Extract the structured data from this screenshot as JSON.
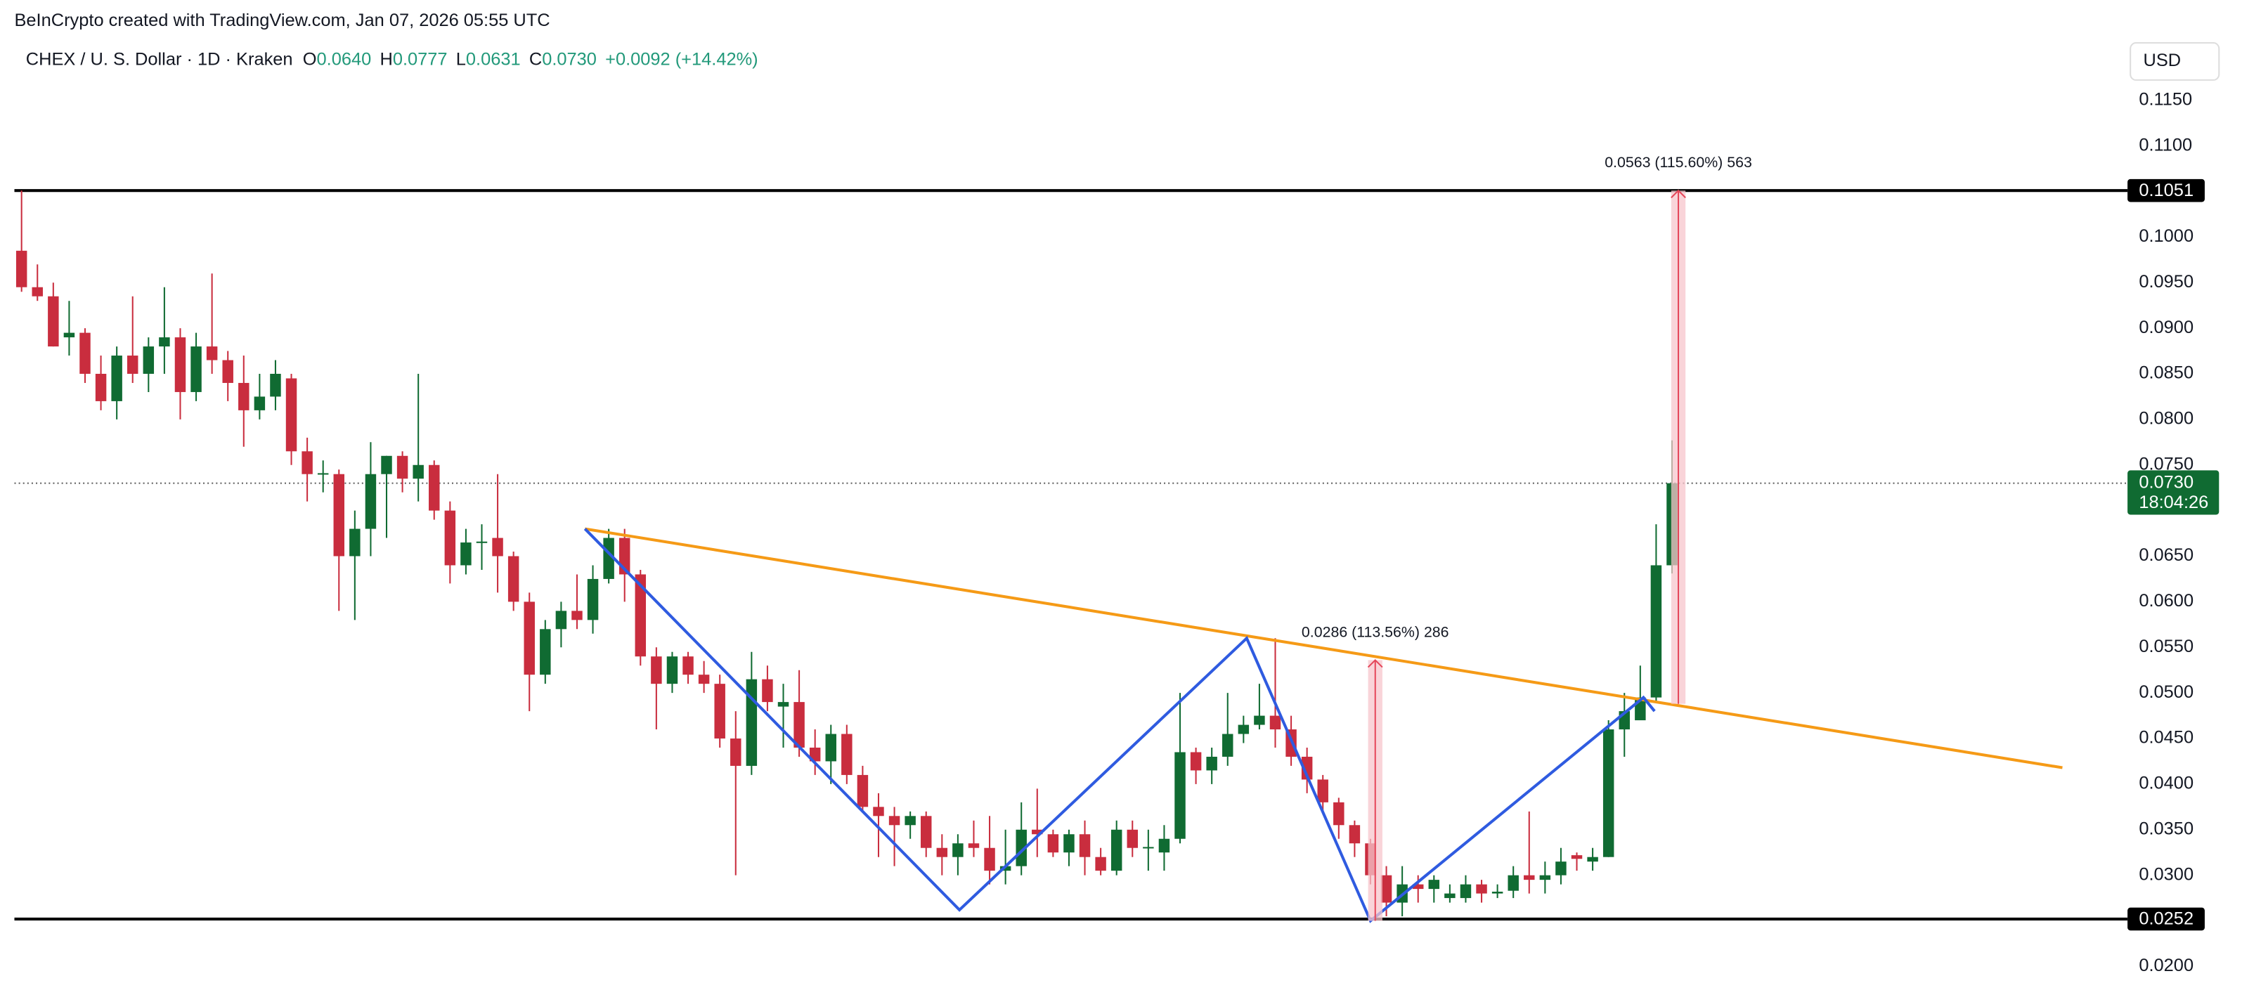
{
  "chart_data": {
    "type": "candlestick",
    "header": "BeInCrypto created with TradingView.com, Jan 07, 2026 05:55 UTC",
    "symbol": "CHEX / U. S. Dollar · 1D · Kraken",
    "ohlc_legend": [
      {
        "key": "O",
        "value": "0.0640"
      },
      {
        "key": "H",
        "value": "0.0777"
      },
      {
        "key": "L",
        "value": "0.0631"
      },
      {
        "key": "C",
        "value": "0.0730"
      }
    ],
    "change": "+0.0092 (+14.42%)",
    "currency": "USD",
    "up_color": "#106b32",
    "down_color": "#c92d3e",
    "ylim": [
      0.0161,
      0.126
    ],
    "yticks": [
      {
        "value": 0.115,
        "label": "0.1150"
      },
      {
        "value": 0.11,
        "label": "0.1100"
      },
      {
        "value": 0.1,
        "label": "0.1000"
      },
      {
        "value": 0.095,
        "label": "0.0950"
      },
      {
        "value": 0.09,
        "label": "0.0900"
      },
      {
        "value": 0.085,
        "label": "0.0850"
      },
      {
        "value": 0.08,
        "label": "0.0800"
      },
      {
        "value": 0.075,
        "label": "0.0750"
      },
      {
        "value": 0.065,
        "label": "0.0650"
      },
      {
        "value": 0.06,
        "label": "0.0600"
      },
      {
        "value": 0.055,
        "label": "0.0550"
      },
      {
        "value": 0.05,
        "label": "0.0500"
      },
      {
        "value": 0.045,
        "label": "0.0450"
      },
      {
        "value": 0.04,
        "label": "0.0400"
      },
      {
        "value": 0.035,
        "label": "0.0350"
      },
      {
        "value": 0.03,
        "label": "0.0300"
      },
      {
        "value": 0.02,
        "label": "0.0200"
      }
    ],
    "candles": [
      [
        0.0985,
        0.1051,
        0.094,
        0.0945
      ],
      [
        0.0945,
        0.097,
        0.093,
        0.0935
      ],
      [
        0.0935,
        0.095,
        0.088,
        0.088
      ],
      [
        0.089,
        0.093,
        0.087,
        0.0895
      ],
      [
        0.0895,
        0.09,
        0.084,
        0.085
      ],
      [
        0.085,
        0.087,
        0.081,
        0.082
      ],
      [
        0.082,
        0.088,
        0.08,
        0.087
      ],
      [
        0.087,
        0.0935,
        0.084,
        0.085
      ],
      [
        0.085,
        0.089,
        0.083,
        0.088
      ],
      [
        0.088,
        0.0945,
        0.085,
        0.089
      ],
      [
        0.089,
        0.09,
        0.08,
        0.083
      ],
      [
        0.083,
        0.0895,
        0.082,
        0.088
      ],
      [
        0.088,
        0.096,
        0.085,
        0.0865
      ],
      [
        0.0865,
        0.0875,
        0.082,
        0.084
      ],
      [
        0.084,
        0.087,
        0.077,
        0.081
      ],
      [
        0.081,
        0.085,
        0.08,
        0.0825
      ],
      [
        0.0825,
        0.0865,
        0.081,
        0.085
      ],
      [
        0.0845,
        0.085,
        0.075,
        0.0765
      ],
      [
        0.0765,
        0.078,
        0.071,
        0.074
      ],
      [
        0.074,
        0.0755,
        0.072,
        0.0741
      ],
      [
        0.074,
        0.0745,
        0.059,
        0.065
      ],
      [
        0.065,
        0.07,
        0.058,
        0.068
      ],
      [
        0.068,
        0.0775,
        0.065,
        0.074
      ],
      [
        0.074,
        0.076,
        0.067,
        0.076
      ],
      [
        0.076,
        0.0765,
        0.072,
        0.0735
      ],
      [
        0.0735,
        0.085,
        0.071,
        0.075
      ],
      [
        0.075,
        0.0755,
        0.069,
        0.07
      ],
      [
        0.07,
        0.071,
        0.062,
        0.064
      ],
      [
        0.064,
        0.068,
        0.063,
        0.0665
      ],
      [
        0.0665,
        0.0685,
        0.0635,
        0.0666
      ],
      [
        0.067,
        0.074,
        0.061,
        0.065
      ],
      [
        0.065,
        0.0655,
        0.059,
        0.06
      ],
      [
        0.06,
        0.061,
        0.048,
        0.052
      ],
      [
        0.052,
        0.058,
        0.051,
        0.057
      ],
      [
        0.057,
        0.06,
        0.055,
        0.059
      ],
      [
        0.059,
        0.063,
        0.057,
        0.058
      ],
      [
        0.058,
        0.064,
        0.0565,
        0.0625
      ],
      [
        0.0625,
        0.068,
        0.062,
        0.067
      ],
      [
        0.067,
        0.068,
        0.06,
        0.063
      ],
      [
        0.063,
        0.0635,
        0.053,
        0.054
      ],
      [
        0.054,
        0.055,
        0.046,
        0.051
      ],
      [
        0.051,
        0.0545,
        0.05,
        0.054
      ],
      [
        0.054,
        0.0545,
        0.051,
        0.052
      ],
      [
        0.052,
        0.0535,
        0.05,
        0.051
      ],
      [
        0.051,
        0.052,
        0.044,
        0.045
      ],
      [
        0.045,
        0.048,
        0.03,
        0.042
      ],
      [
        0.042,
        0.0545,
        0.041,
        0.0515
      ],
      [
        0.0515,
        0.053,
        0.048,
        0.049
      ],
      [
        0.0485,
        0.051,
        0.044,
        0.049
      ],
      [
        0.049,
        0.0525,
        0.043,
        0.044
      ],
      [
        0.044,
        0.046,
        0.041,
        0.0425
      ],
      [
        0.0425,
        0.0465,
        0.04,
        0.0455
      ],
      [
        0.0455,
        0.0465,
        0.04,
        0.041
      ],
      [
        0.041,
        0.042,
        0.037,
        0.0375
      ],
      [
        0.0375,
        0.039,
        0.032,
        0.0365
      ],
      [
        0.0365,
        0.0375,
        0.031,
        0.0355
      ],
      [
        0.0355,
        0.037,
        0.034,
        0.0365
      ],
      [
        0.0365,
        0.037,
        0.032,
        0.033
      ],
      [
        0.033,
        0.0345,
        0.03,
        0.032
      ],
      [
        0.032,
        0.0345,
        0.03,
        0.0335
      ],
      [
        0.0335,
        0.036,
        0.032,
        0.033
      ],
      [
        0.033,
        0.0365,
        0.029,
        0.0305
      ],
      [
        0.0305,
        0.035,
        0.029,
        0.031
      ],
      [
        0.031,
        0.038,
        0.03,
        0.035
      ],
      [
        0.035,
        0.0395,
        0.032,
        0.0345
      ],
      [
        0.0345,
        0.035,
        0.032,
        0.0325
      ],
      [
        0.0325,
        0.035,
        0.031,
        0.0345
      ],
      [
        0.0345,
        0.036,
        0.03,
        0.032
      ],
      [
        0.032,
        0.033,
        0.03,
        0.0305
      ],
      [
        0.0305,
        0.036,
        0.03,
        0.035
      ],
      [
        0.035,
        0.036,
        0.032,
        0.033
      ],
      [
        0.033,
        0.035,
        0.0305,
        0.0331
      ],
      [
        0.0325,
        0.0355,
        0.0305,
        0.034
      ],
      [
        0.034,
        0.05,
        0.0335,
        0.0435
      ],
      [
        0.0435,
        0.044,
        0.04,
        0.0415
      ],
      [
        0.0415,
        0.044,
        0.04,
        0.043
      ],
      [
        0.043,
        0.05,
        0.042,
        0.0455
      ],
      [
        0.0455,
        0.0475,
        0.0445,
        0.0465
      ],
      [
        0.0465,
        0.051,
        0.046,
        0.0475
      ],
      [
        0.0475,
        0.056,
        0.044,
        0.046
      ],
      [
        0.046,
        0.0475,
        0.042,
        0.043
      ],
      [
        0.043,
        0.044,
        0.039,
        0.0405
      ],
      [
        0.0405,
        0.041,
        0.037,
        0.038
      ],
      [
        0.038,
        0.0385,
        0.034,
        0.0355
      ],
      [
        0.0355,
        0.036,
        0.032,
        0.0335
      ],
      [
        0.0335,
        0.034,
        0.029,
        0.03
      ],
      [
        0.03,
        0.031,
        0.0255,
        0.027
      ],
      [
        0.027,
        0.031,
        0.0255,
        0.029
      ],
      [
        0.029,
        0.03,
        0.027,
        0.0285
      ],
      [
        0.0285,
        0.03,
        0.027,
        0.0295
      ],
      [
        0.0275,
        0.029,
        0.027,
        0.028
      ],
      [
        0.0275,
        0.03,
        0.027,
        0.029
      ],
      [
        0.029,
        0.0295,
        0.027,
        0.028
      ],
      [
        0.028,
        0.029,
        0.0275,
        0.0282
      ],
      [
        0.0283,
        0.031,
        0.0275,
        0.03
      ],
      [
        0.03,
        0.037,
        0.028,
        0.0295
      ],
      [
        0.0295,
        0.0315,
        0.028,
        0.03
      ],
      [
        0.03,
        0.033,
        0.029,
        0.0315
      ],
      [
        0.0322,
        0.0325,
        0.0305,
        0.0318
      ],
      [
        0.0315,
        0.033,
        0.0305,
        0.032
      ],
      [
        0.032,
        0.047,
        0.032,
        0.046
      ],
      [
        0.046,
        0.05,
        0.043,
        0.048
      ],
      [
        0.047,
        0.053,
        0.047,
        0.0495
      ],
      [
        0.0495,
        0.0685,
        0.049,
        0.064
      ],
      [
        0.064,
        0.0777,
        0.0631,
        0.073
      ]
    ],
    "levels": [
      {
        "value": 0.1051,
        "label": "0.1051"
      },
      {
        "value": 0.0252,
        "label": "0.0252"
      }
    ],
    "last_price": {
      "value": 0.073,
      "label": "0.0730"
    },
    "countdown": "18:04:26",
    "trendlines": [
      {
        "color": "#f59a16",
        "points": [
          [
            35.5,
            0.068
          ],
          [
            128.6,
            0.0418
          ]
        ]
      },
      {
        "color": "#2f5be0",
        "points": [
          [
            35.5,
            0.068
          ],
          [
            59.1,
            0.0262
          ],
          [
            77.2,
            0.056
          ],
          [
            85,
            0.025
          ],
          [
            102.2,
            0.0495
          ],
          [
            102.9,
            0.048
          ]
        ]
      }
    ],
    "measures": [
      {
        "label": "0.0286 (113.56%) 286",
        "x": 85.3,
        "from": 0.025,
        "to": 0.0536
      },
      {
        "label": "0.0563 (115.60%) 563",
        "x": 104.4,
        "from": 0.0488,
        "to": 0.1051
      }
    ]
  }
}
